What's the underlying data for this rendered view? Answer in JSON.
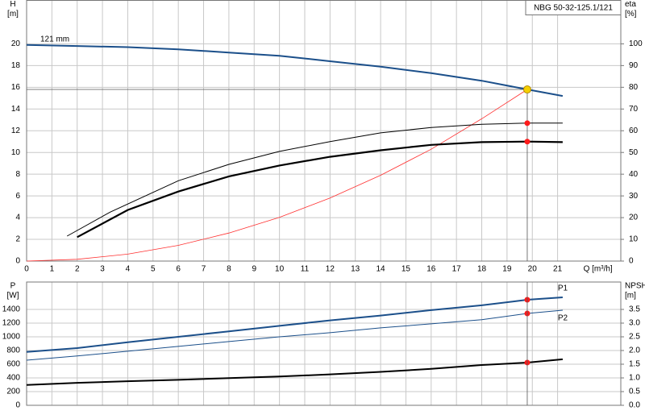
{
  "chart_data": [
    {
      "type": "line",
      "title": "NBG 50-32-125.1/121",
      "x_label": "Q [m³/h]",
      "y_label": "H",
      "y_unit": "[m]",
      "y2_label": "eta",
      "y2_unit": "[%]",
      "xlim": [
        0,
        23.5
      ],
      "xticks": [
        0,
        1,
        2,
        3,
        4,
        5,
        6,
        7,
        8,
        9,
        10,
        11,
        12,
        13,
        14,
        15,
        16,
        17,
        18,
        19,
        20,
        21
      ],
      "ylim": [
        0,
        24
      ],
      "yticks": [
        0,
        2,
        4,
        6,
        8,
        10,
        12,
        14,
        16,
        18,
        20
      ],
      "y2lim": [
        0,
        120
      ],
      "y2ticks": [
        0,
        10,
        20,
        30,
        40,
        50,
        60,
        70,
        80,
        90,
        100
      ],
      "grid": true,
      "series": [
        {
          "name": "121 mm",
          "color": "#1b4f8a",
          "line_width": 2,
          "x": [
            0,
            2,
            4,
            6,
            8,
            10,
            12,
            14,
            16,
            18,
            19.8,
            21.2
          ],
          "values": [
            19.9,
            19.8,
            19.7,
            19.5,
            19.2,
            18.9,
            18.4,
            17.9,
            17.3,
            16.6,
            15.8,
            15.2
          ]
        },
        {
          "color": "#ff3030",
          "line_width": 0.8,
          "x": [
            0,
            2,
            4,
            6,
            8,
            10,
            12,
            14,
            16,
            18,
            19.8
          ],
          "values": [
            0,
            0.16,
            0.64,
            1.45,
            2.58,
            4.03,
            5.8,
            7.9,
            10.3,
            13.1,
            15.8
          ]
        },
        {
          "color": "#000000",
          "line_width": 1,
          "axis": "y2",
          "x": [
            1.6,
            3.3,
            6,
            8,
            10,
            12,
            14,
            16,
            18,
            19.8,
            21.2
          ],
          "values": [
            11.5,
            22.5,
            37,
            44.5,
            50.5,
            55,
            59,
            61.5,
            63,
            63.5,
            63.5
          ]
        },
        {
          "color": "#000000",
          "line_width": 2.2,
          "axis": "y2",
          "x": [
            2,
            4,
            6,
            8,
            10,
            12,
            14,
            16,
            18,
            19.8,
            21.2
          ],
          "values": [
            11,
            23.5,
            32,
            39,
            44,
            48,
            51,
            53.5,
            54.75,
            55,
            54.75
          ]
        }
      ],
      "points": [
        {
          "x": 19.8,
          "y": 15.8,
          "color": "#f5d000"
        },
        {
          "x": 19.8,
          "y": 63.5,
          "color": "#ff1a1a",
          "axis": "y2"
        },
        {
          "x": 19.8,
          "y": 55,
          "color": "#ff1a1a",
          "axis": "y2"
        }
      ]
    },
    {
      "type": "line",
      "y_label": "P",
      "y_unit": "[W]",
      "y2_label": "NPSH",
      "y2_unit": "[m]",
      "ylim": [
        0,
        1800
      ],
      "yticks": [
        0,
        200,
        400,
        600,
        800,
        1000,
        1200,
        1400
      ],
      "y2lim": [
        0,
        4.5
      ],
      "y2ticks": [
        {
          "value": 0,
          "label": "0.0"
        },
        0.5,
        {
          "value": 1,
          "label": "1.0"
        },
        1.5,
        {
          "value": 2,
          "label": "2.0"
        },
        2.5,
        {
          "value": 3,
          "label": "3.0"
        },
        3.5
      ],
      "grid": true,
      "series": [
        {
          "name": "P1",
          "color": "#1b4f8a",
          "line_width": 2,
          "x": [
            0,
            2,
            4,
            6,
            8,
            10,
            12,
            14,
            16,
            18,
            19.8,
            21.2
          ],
          "values": [
            780,
            835,
            920,
            1000,
            1080,
            1160,
            1240,
            1310,
            1390,
            1460,
            1541,
            1576
          ]
        },
        {
          "name": "P2",
          "color": "#1b4f8a",
          "line_width": 1,
          "x": [
            0,
            2,
            4,
            6,
            8,
            10,
            12,
            14,
            16,
            18,
            19.8,
            21.2
          ],
          "values": [
            659,
            720,
            790,
            860,
            930,
            1000,
            1060,
            1130,
            1190,
            1250,
            1341,
            1388
          ]
        },
        {
          "color": "#000000",
          "line_width": 2,
          "axis": "y2",
          "x": [
            0,
            2,
            4,
            6,
            8,
            10,
            12,
            14,
            16,
            18,
            19.8,
            21.2
          ],
          "values": [
            0.74,
            0.82,
            0.88,
            0.93,
            0.99,
            1.05,
            1.13,
            1.22,
            1.33,
            1.47,
            1.56,
            1.68
          ]
        }
      ],
      "points": [
        {
          "x": 19.8,
          "y": 1541,
          "color": "#ff1a1a"
        },
        {
          "x": 19.8,
          "y": 1341,
          "color": "#ff1a1a"
        },
        {
          "x": 19.8,
          "y": 1.56,
          "color": "#ff1a1a",
          "axis": "y2"
        }
      ]
    }
  ]
}
